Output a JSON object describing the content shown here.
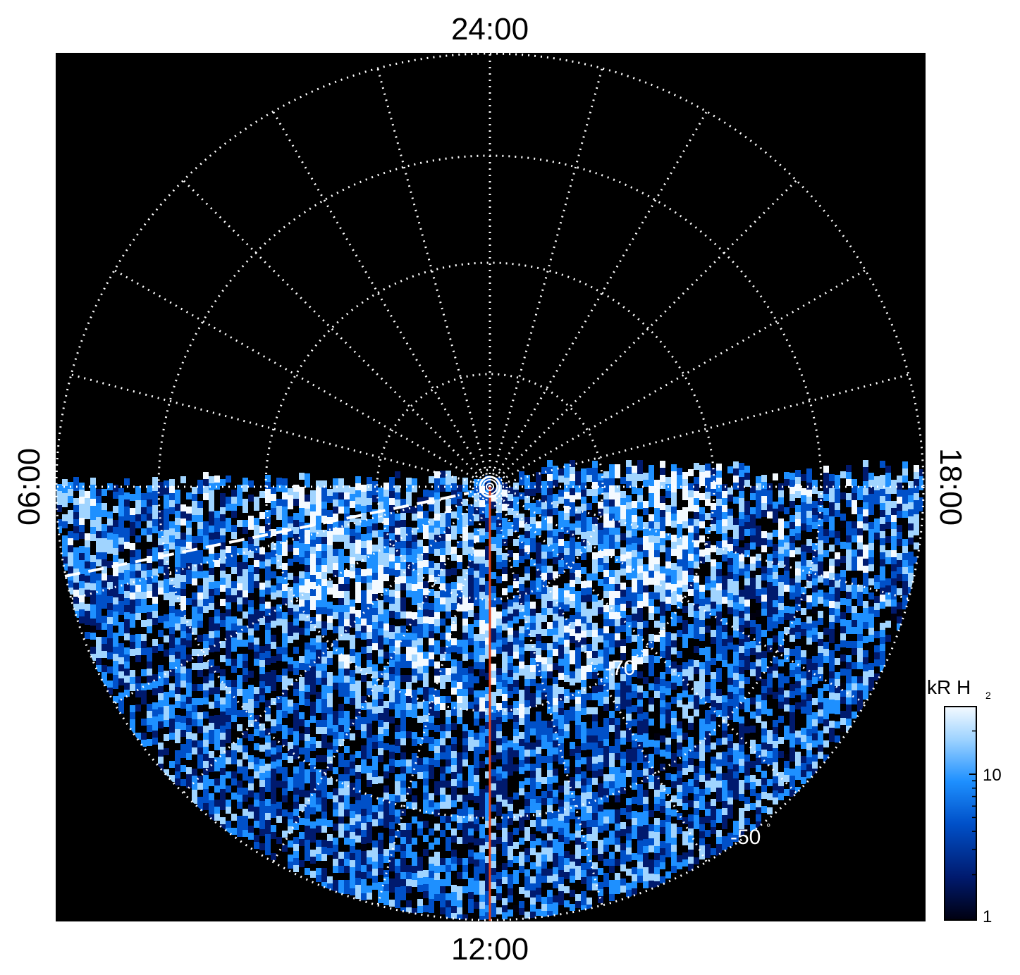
{
  "figure": {
    "labels": {
      "top": "24:00",
      "bottom": "12:00",
      "left": "06:00",
      "right": "18:00"
    },
    "latitude_labels": [
      {
        "text": "-70",
        "degree": "°"
      },
      {
        "text": "-50",
        "degree": "°"
      }
    ],
    "colorbar": {
      "unit": "kR H",
      "unit_subscript": "2",
      "ticks": [
        "10",
        "1"
      ],
      "colors": [
        "#000010",
        "#001a6e",
        "#0050c8",
        "#1e90ff",
        "#a0d4ff",
        "#f4faff"
      ]
    },
    "colors": {
      "background": "#000000",
      "grid": "#ffffff",
      "meridian": "#e0401a",
      "emission": "#1e90ff"
    }
  }
}
